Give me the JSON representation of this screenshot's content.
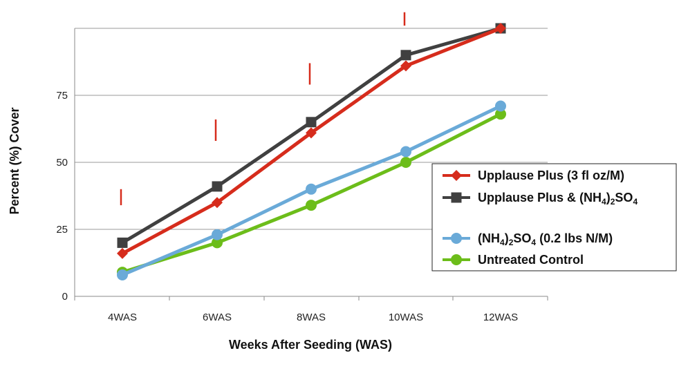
{
  "chart_data": {
    "type": "line",
    "categories": [
      "4WAS",
      "6WAS",
      "8WAS",
      "10WAS",
      "12WAS"
    ],
    "xlabel": "Weeks After Seeding (WAS)",
    "ylabel": "Percent (%) Cover",
    "ylim": [
      0,
      100
    ],
    "yticks": [
      0,
      25,
      50,
      75
    ],
    "grid": true,
    "legend_position": "right",
    "series": [
      {
        "name": "Upplause Plus (3 fl oz/M)",
        "marker": "diamond",
        "color": "#d62c1c",
        "values": [
          16,
          35,
          61,
          86,
          100
        ]
      },
      {
        "name": "Upplause Plus & (NH4)2SO4",
        "marker": "square",
        "color": "#404040",
        "values": [
          20,
          41,
          65,
          90,
          100
        ]
      },
      {
        "name": "(NH4)2SO4 (0.2 lbs N/M)",
        "marker": "circle",
        "color": "#6aaad8",
        "values": [
          8,
          23,
          40,
          54,
          71
        ]
      },
      {
        "name": "Untreated Control",
        "marker": "circle",
        "color": "#6cbd1a",
        "values": [
          9,
          20,
          34,
          50,
          68
        ]
      }
    ],
    "error_markers": {
      "color": "#d62c1c",
      "ranges": [
        [
          34,
          40
        ],
        [
          58,
          66
        ],
        [
          79,
          87
        ],
        [
          101,
          106
        ]
      ]
    }
  }
}
